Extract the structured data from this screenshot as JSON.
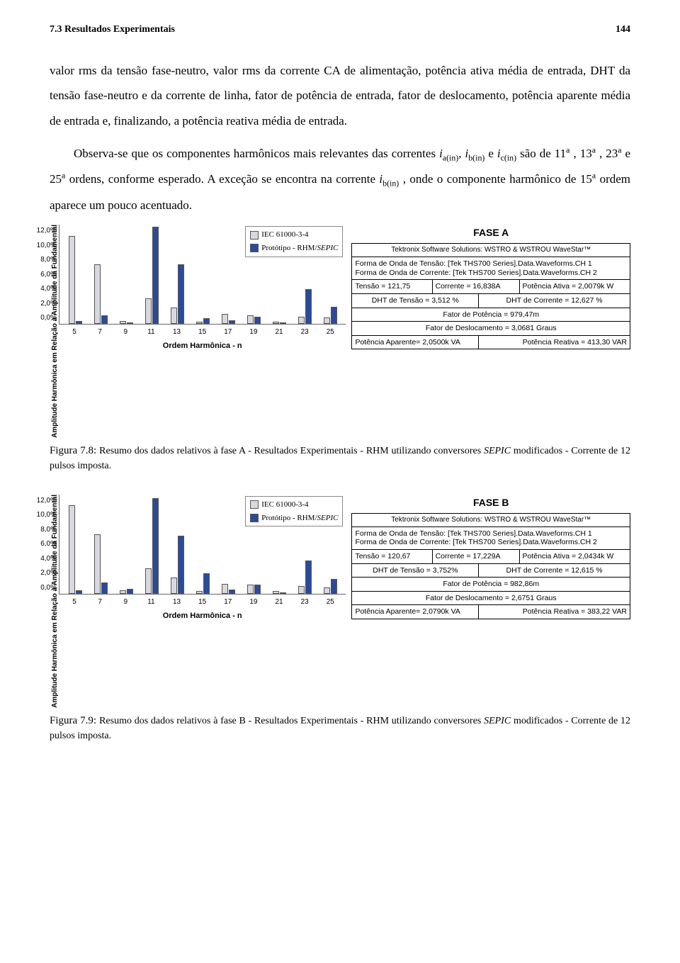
{
  "header": {
    "section": "7.3 Resultados Experimentais",
    "page": "144"
  },
  "paragraphs": {
    "p1": "valor rms da tensão fase-neutro, valor rms da corrente CA de alimentação, potência ativa média de entrada, DHT da tensão fase-neutro e da corrente de linha, fator de potência de entrada, fator de deslocamento, potência aparente média de entrada e, finalizando, a potência reativa média de entrada.",
    "p2_a": "Observa-se que os componentes harmônicos mais relevantes das correntes ",
    "p2_b": " e ",
    "p2_c": " são de 11",
    "p2_d": ", 13",
    "p2_e": ", 23",
    "p2_f": " e 25",
    "p2_g": " ordens, conforme esperado. A exceção se encontra na corrente ",
    "p2_h": ", onde o componente harmônico de 15",
    "p2_i": " ordem aparece um pouco acentuado."
  },
  "legend": {
    "l1": "IEC 61000-3-4",
    "l2_a": "Protótipo - RHM/",
    "l2_b": "SEPIC"
  },
  "chart_common": {
    "y_axis_label": "Amplitude Harmônica em Relação à Amplitude da Fundamental",
    "x_axis_label": "Ordem Harmônica - n",
    "y_ticks": [
      "0,0%",
      "2,0%",
      "4,0%",
      "6,0%",
      "8,0%",
      "10,0%",
      "12,0%"
    ],
    "y_max": 12.0,
    "x_categories": [
      "5",
      "7",
      "9",
      "11",
      "13",
      "15",
      "17",
      "19",
      "21",
      "23",
      "25"
    ],
    "colors": {
      "iec": "#d8d8e0",
      "proto": "#2a4b9a",
      "border": "#555555"
    }
  },
  "chartA": {
    "phase_title": "FASE A",
    "iec": [
      10.7,
      7.2,
      0.4,
      3.1,
      2.0,
      0.3,
      1.2,
      1.1,
      0.3,
      0.9,
      0.8
    ],
    "proto": [
      0.4,
      1.1,
      0.2,
      11.8,
      7.2,
      0.7,
      0.5,
      0.9,
      0.1,
      4.2,
      2.1
    ]
  },
  "chartB": {
    "phase_title": "FASE B",
    "iec": [
      10.7,
      7.2,
      0.4,
      3.1,
      2.0,
      0.3,
      1.2,
      1.1,
      0.3,
      0.9,
      0.8
    ],
    "proto": [
      0.4,
      1.4,
      0.6,
      11.6,
      7.0,
      2.5,
      0.5,
      1.1,
      0.2,
      4.0,
      1.8
    ]
  },
  "panelA": {
    "head": "Tektronix Software Solutions: WSTRO & WSTROU WaveStar™",
    "wave1": "Forma de Onda de Tensão: [Tek THS700 Series].Data.Waveforms.CH 1",
    "wave2": "Forma de Onda de Corrente: [Tek THS700 Series].Data.Waveforms.CH 2",
    "tensao": "Tensão = 121,75",
    "corrente": "Corrente = 16,838A",
    "pativa": "Potência Ativa = 2,0079k W",
    "dht_t": "DHT de Tensão = 3,512 %",
    "dht_c": "DHT de Corrente = 12,627 %",
    "fpot": "Fator de Potência = 979,47m",
    "fdes": "Fator de Deslocamento = 3,0681 Graus",
    "papar": "Potência Aparente= 2,0500k VA",
    "preat": "Potência Reativa = 413,30 VAR"
  },
  "panelB": {
    "head": "Tektronix Software Solutions: WSTRO & WSTROU WaveStar™",
    "wave1": "Forma de Onda de Tensão: [Tek THS700 Series].Data.Waveforms.CH 1",
    "wave2": "Forma de Onda de Corrente: [Tek THS700 Series].Data.Waveforms.CH 2",
    "tensao": "Tensão = 120,67",
    "corrente": "Corrente = 17,229A",
    "pativa": "Potência Ativa = 2,0434k W",
    "dht_t": "DHT de Tensão = 3,752%",
    "dht_c": "DHT de Corrente = 12,615 %",
    "fpot": "Fator de Potência = 982,86m",
    "fdes": "Fator de Deslocamento = 2,6751 Graus",
    "papar": "Potência Aparente= 2,0790k VA",
    "preat": "Potência Reativa = 383,22 VAR"
  },
  "captions": {
    "c78_a": "Figura 7.8: ",
    "c78_b": "Resumo dos dados relativos à fase A - Resultados Experimentais - RHM utilizando conversores ",
    "c78_c": " modificados - Corrente de 12 pulsos imposta.",
    "c79_a": "Figura 7.9: ",
    "c79_b": "Resumo dos dados relativos à fase B - Resultados Experimentais - RHM utilizando conversores ",
    "c79_c": " modificados - Corrente de 12 pulsos imposta."
  }
}
